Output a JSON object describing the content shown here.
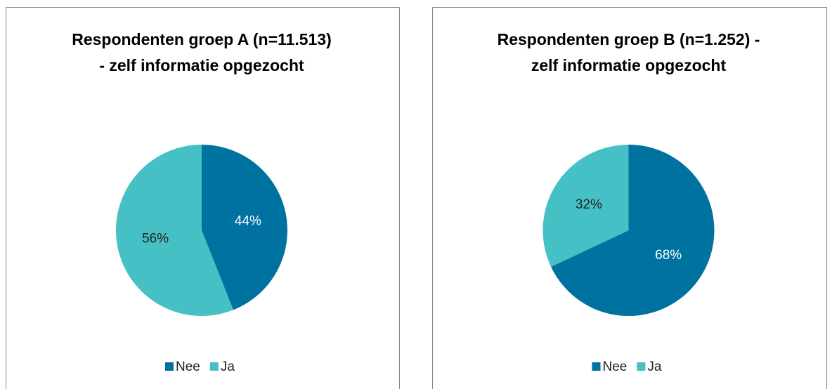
{
  "chart_data": [
    {
      "type": "pie",
      "title": "Respondenten groep A (n=11.513) - zelf informatie opgezocht",
      "categories": [
        "Nee",
        "Ja"
      ],
      "values": [
        44,
        56
      ],
      "value_labels": [
        "44%",
        "56%"
      ],
      "colors": [
        "#0072a0",
        "#45c1c6"
      ],
      "legend": "bottom"
    },
    {
      "type": "pie",
      "title": "Respondenten groep B (n=1.252) - zelf informatie opgezocht",
      "categories": [
        "Nee",
        "Ja"
      ],
      "values": [
        68,
        32
      ],
      "value_labels": [
        "68%",
        "32%"
      ],
      "colors": [
        "#0072a0",
        "#45c1c6"
      ],
      "legend": "bottom"
    }
  ]
}
